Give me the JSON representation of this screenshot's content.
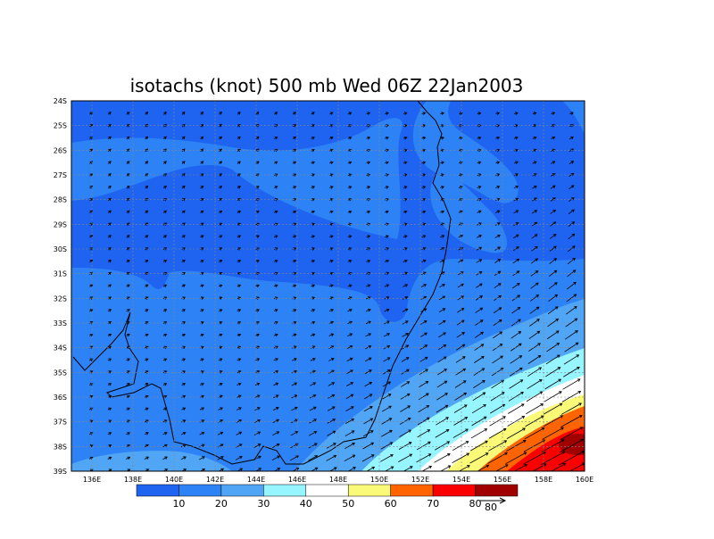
{
  "title": "isotachs (knot) 500 mb Wed 06Z 22Jan2003",
  "lat_labels": [
    "24S",
    "25S",
    "26S",
    "27S",
    "28S",
    "29S",
    "30S",
    "31S",
    "32S",
    "33S",
    "34S",
    "35S",
    "36S",
    "37S",
    "38S",
    "39S"
  ],
  "lon_labels": [
    "136E",
    "138E",
    "140E",
    "142E",
    "144E",
    "146E",
    "148E",
    "150E",
    "152E",
    "154E",
    "156E",
    "158E",
    "160E"
  ],
  "colorbar": {
    "labels": [
      "10",
      "20",
      "30",
      "40",
      "50",
      "60",
      "70",
      "80"
    ],
    "colors": [
      "#1e64f0",
      "#2d82f5",
      "#50a5f5",
      "#96f5ff",
      "#ffffff",
      "#fafa78",
      "#ff6400",
      "#fa0000",
      "#a00000"
    ]
  },
  "vector_reference": "80"
}
